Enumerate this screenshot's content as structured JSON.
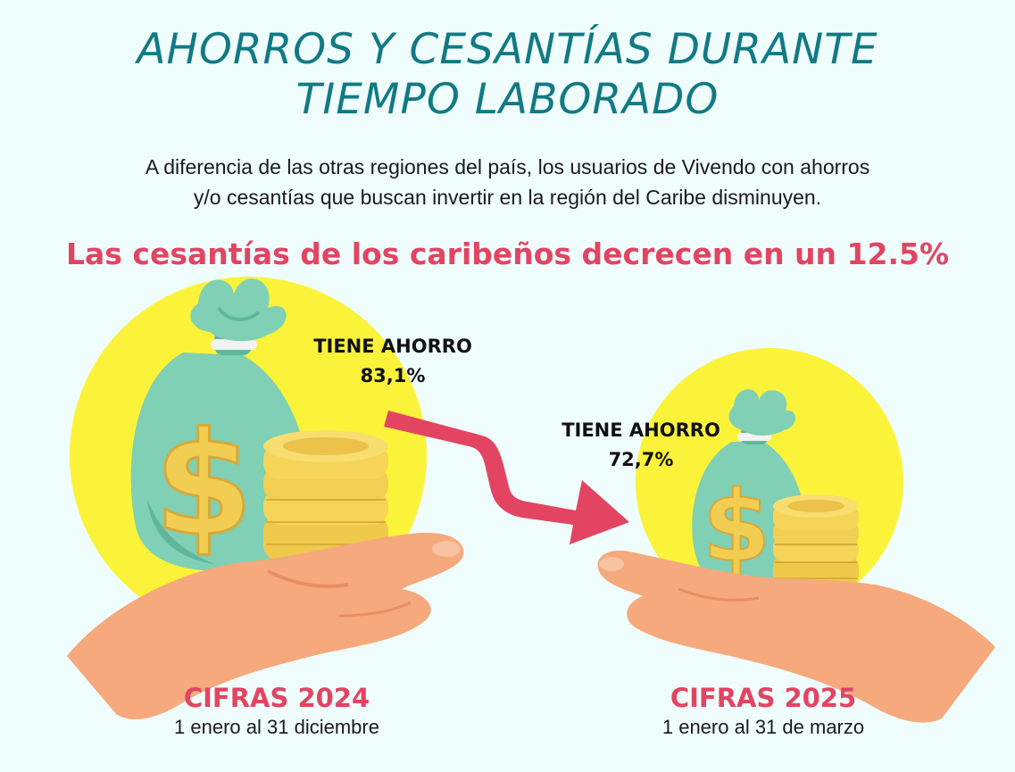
{
  "title": {
    "line1": "AHORROS Y CESANTÍAS DURANTE",
    "line2": "TIEMPO LABORADO"
  },
  "intro": {
    "line1": "A diferencia de las otras regiones del país, los usuarios de Vivendo con ahorros",
    "line2": "y/o cesantías que buscan invertir en la región del Caribe disminuyen."
  },
  "headline": "Las cesantías de los caribeños decrecen en un 12.5%",
  "stats": [
    {
      "label": "TIENE AHORRO",
      "value": "83,1%"
    },
    {
      "label": "TIENE AHORRO",
      "value": "72,7%"
    }
  ],
  "periods": [
    {
      "title": "CIFRAS 2024",
      "range": "1 enero al 31 diciembre"
    },
    {
      "title": "CIFRAS 2025",
      "range": "1 enero al 31 de marzo"
    }
  ],
  "icons": [
    "money-bag-icon",
    "coin-stack-icon",
    "open-hand-icon",
    "down-arrow-icon"
  ],
  "colors": {
    "title": "#127a84",
    "accent": "#e24462",
    "circle": "#fbf33a",
    "bag": "#7fd0b5",
    "coin": "#f5d458",
    "hand": "#f5a97d",
    "background": "#effdfc"
  }
}
